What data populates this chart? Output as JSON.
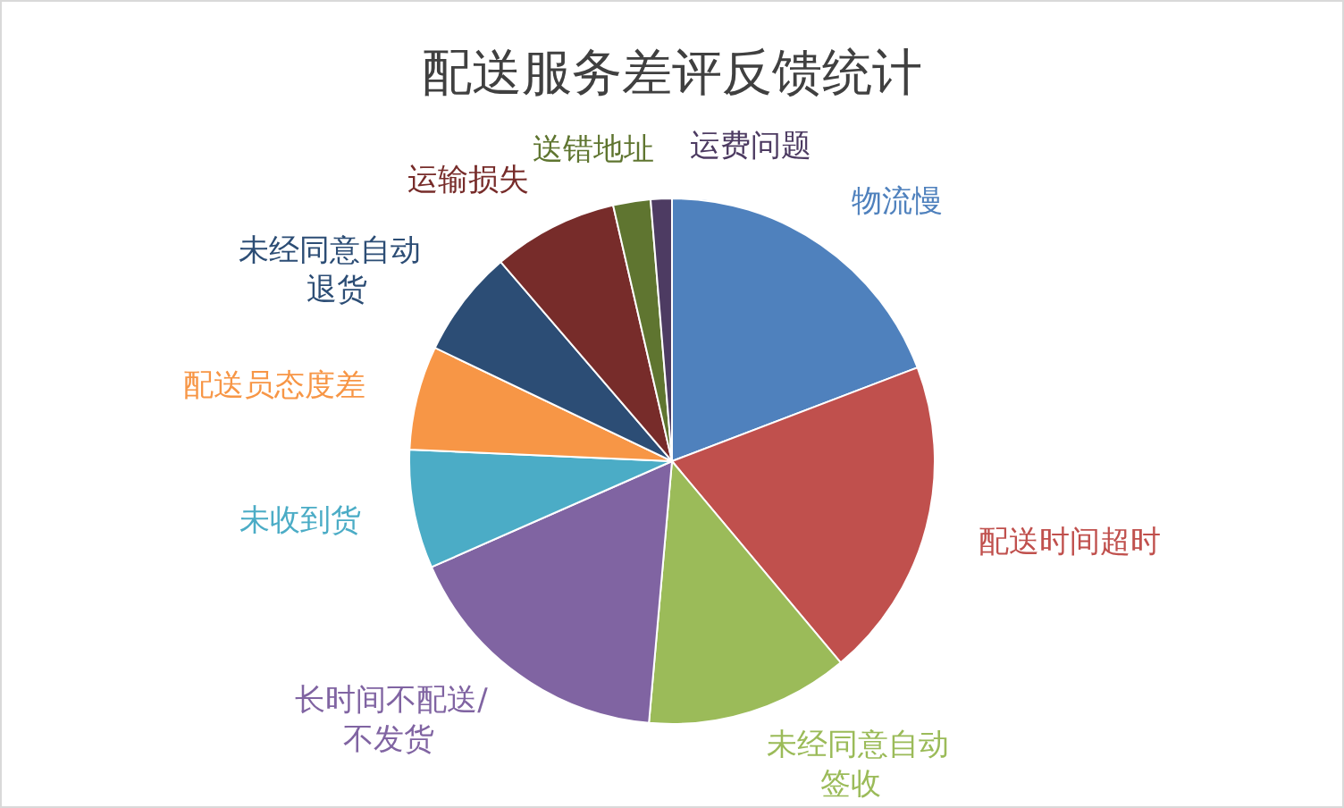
{
  "chart_data": {
    "type": "pie",
    "title": "配送服务差评反馈统计",
    "categories": [
      "物流慢",
      "配送时间超时",
      "未经同意自动签收",
      "长时间不配送/不发货",
      "未收到货",
      "配送员态度差",
      "未经同意自动退货",
      "运输损失",
      "送错地址",
      "运费问题"
    ],
    "values": [
      19.2,
      19.7,
      12.5,
      17,
      7.3,
      6.4,
      6.6,
      7.7,
      2.3,
      1.3
    ],
    "colors": [
      "#4f81bd",
      "#c0504d",
      "#9bbb59",
      "#8064a2",
      "#4bacc6",
      "#f79646",
      "#2c4d75",
      "#772c2a",
      "#5f7530",
      "#4d3b62"
    ],
    "legend": false
  }
}
